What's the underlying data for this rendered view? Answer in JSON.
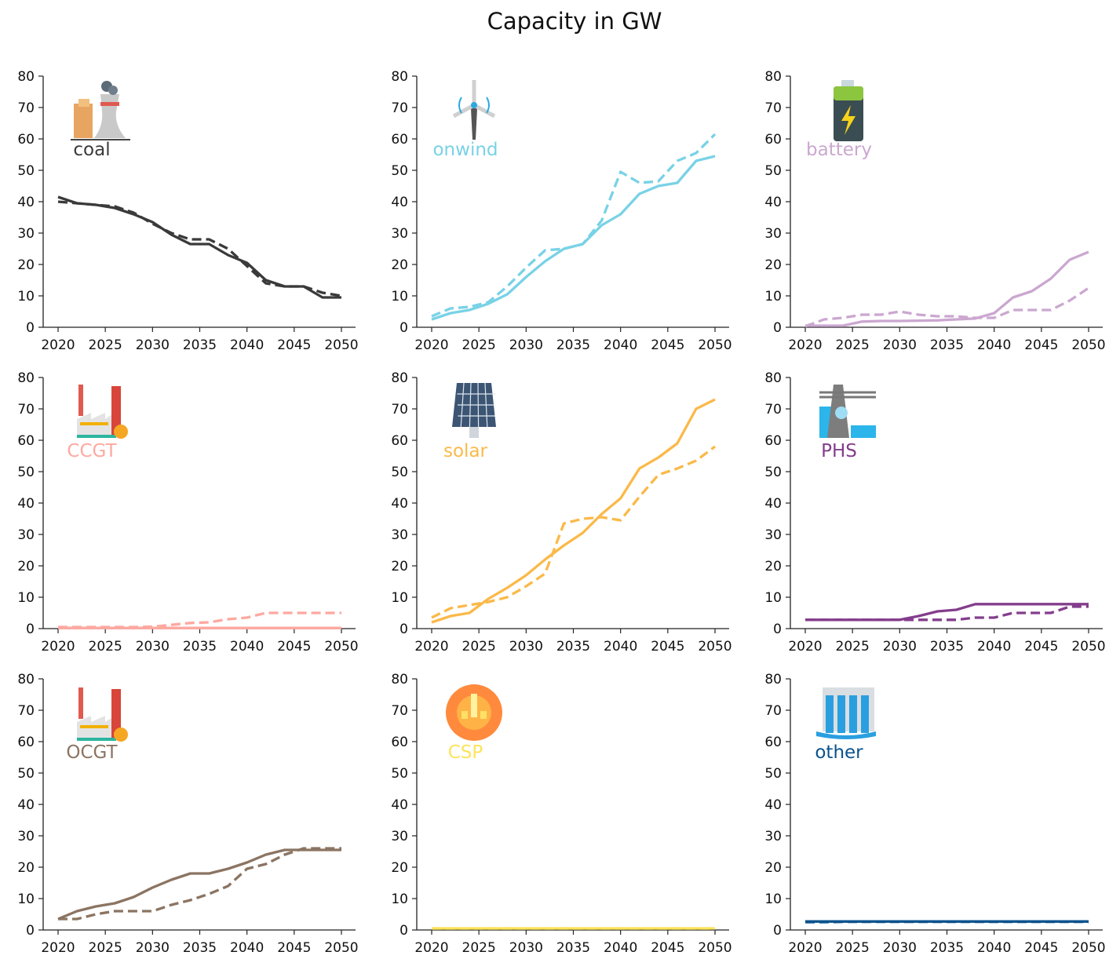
{
  "title": "Capacity in GW",
  "chart_data": [
    {
      "type": "line",
      "label": "coal",
      "color": "#3a3a3a",
      "icon": "power-plant-icon",
      "x": [
        2020,
        2022,
        2024,
        2026,
        2028,
        2030,
        2032,
        2034,
        2036,
        2038,
        2040,
        2042,
        2044,
        2046,
        2048,
        2050
      ],
      "series": [
        {
          "style": "solid",
          "values": [
            41.5,
            39.5,
            39,
            38,
            36,
            33.5,
            29.5,
            26.5,
            26.5,
            23,
            20.5,
            15,
            13,
            13,
            9.5,
            9.5
          ]
        },
        {
          "style": "dashed",
          "values": [
            40,
            39.5,
            39,
            38.5,
            36.5,
            33,
            30,
            28,
            28,
            25,
            19.5,
            14,
            13,
            13,
            11,
            10
          ]
        }
      ],
      "ylim": [
        0,
        80
      ],
      "xlim": [
        2020,
        2050
      ]
    },
    {
      "type": "line",
      "label": "onwind",
      "color": "#79d2e6",
      "icon": "wind-turbine-icon",
      "x": [
        2020,
        2022,
        2024,
        2026,
        2028,
        2030,
        2032,
        2034,
        2036,
        2038,
        2040,
        2042,
        2044,
        2046,
        2048,
        2050
      ],
      "series": [
        {
          "style": "solid",
          "values": [
            2.5,
            4.5,
            5.5,
            7.5,
            10.5,
            16,
            21,
            25,
            26.5,
            32.5,
            36,
            42.5,
            45,
            46,
            53,
            54.5
          ]
        },
        {
          "style": "dashed",
          "values": [
            3.5,
            6,
            6.5,
            8,
            13,
            19,
            24.5,
            25,
            26.5,
            34,
            49.5,
            46,
            46.5,
            53,
            55.5,
            61.5
          ]
        }
      ],
      "ylim": [
        0,
        80
      ],
      "xlim": [
        2020,
        2050
      ]
    },
    {
      "type": "line",
      "label": "battery",
      "color": "#cba7d0",
      "icon": "battery-icon",
      "x": [
        2020,
        2022,
        2024,
        2026,
        2028,
        2030,
        2032,
        2034,
        2036,
        2038,
        2040,
        2042,
        2044,
        2046,
        2048,
        2050
      ],
      "series": [
        {
          "style": "solid",
          "values": [
            0.5,
            0.5,
            0.5,
            1.8,
            2,
            2,
            2.1,
            2.2,
            2.5,
            2.8,
            4.5,
            9.5,
            11.5,
            15.5,
            21.5,
            24
          ]
        },
        {
          "style": "dashed",
          "values": [
            0.3,
            2.5,
            3,
            4,
            4,
            5,
            4,
            3.5,
            3.5,
            3,
            3,
            5.5,
            5.5,
            5.5,
            8.5,
            12.5
          ]
        }
      ],
      "ylim": [
        0,
        80
      ],
      "xlim": [
        2020,
        2050
      ]
    },
    {
      "type": "line",
      "label": "CCGT",
      "color": "#fea8a0",
      "icon": "factory-icon",
      "x": [
        2020,
        2022,
        2024,
        2026,
        2028,
        2030,
        2032,
        2034,
        2036,
        2038,
        2040,
        2042,
        2044,
        2046,
        2048,
        2050
      ],
      "series": [
        {
          "style": "solid",
          "values": [
            0.2,
            0.2,
            0.2,
            0.2,
            0.2,
            0.2,
            0.2,
            0.2,
            0.2,
            0.2,
            0.2,
            0.2,
            0.2,
            0.2,
            0.2,
            0.2
          ]
        },
        {
          "style": "dashed",
          "values": [
            0.5,
            0.5,
            0.5,
            0.5,
            0.5,
            0.6,
            1.2,
            1.8,
            2,
            3,
            3.5,
            5,
            5,
            5,
            5,
            5
          ]
        }
      ],
      "ylim": [
        0,
        80
      ],
      "xlim": [
        2020,
        2050
      ]
    },
    {
      "type": "line",
      "label": "solar",
      "color": "#fbb949",
      "icon": "solar-panel-icon",
      "x": [
        2020,
        2022,
        2024,
        2026,
        2028,
        2030,
        2032,
        2034,
        2036,
        2038,
        2040,
        2042,
        2044,
        2046,
        2048,
        2050
      ],
      "series": [
        {
          "style": "solid",
          "values": [
            2,
            4,
            5,
            9.5,
            13,
            17,
            22,
            26.5,
            30.5,
            36.5,
            41.5,
            51,
            54.5,
            59,
            70,
            73
          ]
        },
        {
          "style": "dashed",
          "values": [
            3.5,
            6.5,
            7.5,
            8.5,
            10,
            13.5,
            17.5,
            33.5,
            35,
            35.5,
            34.5,
            42,
            49,
            51,
            53.5,
            58
          ]
        }
      ],
      "ylim": [
        0,
        80
      ],
      "xlim": [
        2020,
        2050
      ]
    },
    {
      "type": "line",
      "label": "PHS",
      "color": "#843d8c",
      "icon": "hydro-storage-icon",
      "x": [
        2020,
        2022,
        2024,
        2026,
        2028,
        2030,
        2032,
        2034,
        2036,
        2038,
        2040,
        2042,
        2044,
        2046,
        2048,
        2050
      ],
      "series": [
        {
          "style": "solid",
          "values": [
            2.8,
            2.8,
            2.8,
            2.8,
            2.8,
            2.8,
            4,
            5.5,
            6,
            7.8,
            7.8,
            7.8,
            7.8,
            7.8,
            7.8,
            7.8
          ]
        },
        {
          "style": "dashed",
          "values": [
            2.8,
            2.8,
            2.8,
            2.8,
            2.8,
            2.8,
            2.8,
            2.8,
            2.8,
            3.5,
            3.5,
            5,
            5,
            5,
            7,
            7
          ]
        }
      ],
      "ylim": [
        0,
        80
      ],
      "xlim": [
        2020,
        2050
      ]
    },
    {
      "type": "line",
      "label": "OCGT",
      "color": "#8b7462",
      "icon": "factory-icon",
      "x": [
        2020,
        2022,
        2024,
        2026,
        2028,
        2030,
        2032,
        2034,
        2036,
        2038,
        2040,
        2042,
        2044,
        2046,
        2048,
        2050
      ],
      "series": [
        {
          "style": "solid",
          "values": [
            3.5,
            6,
            7.5,
            8.5,
            10.5,
            13.5,
            16,
            18,
            18,
            19.5,
            21.5,
            24,
            25.5,
            25.5,
            25.5,
            25.5
          ]
        },
        {
          "style": "dashed",
          "values": [
            3.5,
            3.5,
            5,
            6,
            6,
            6,
            8,
            9.5,
            11.5,
            14,
            19.5,
            21,
            24,
            26,
            26,
            26
          ]
        }
      ],
      "ylim": [
        0,
        80
      ],
      "xlim": [
        2020,
        2050
      ]
    },
    {
      "type": "line",
      "label": "CSP",
      "color": "#fce45b",
      "icon": "csp-icon",
      "x": [
        2020,
        2022,
        2024,
        2026,
        2028,
        2030,
        2032,
        2034,
        2036,
        2038,
        2040,
        2042,
        2044,
        2046,
        2048,
        2050
      ],
      "series": [
        {
          "style": "solid",
          "values": [
            0.5,
            0.5,
            0.5,
            0.5,
            0.5,
            0.5,
            0.5,
            0.5,
            0.5,
            0.5,
            0.5,
            0.5,
            0.5,
            0.5,
            0.5,
            0.5
          ]
        },
        {
          "style": "dashed",
          "values": [
            0.5,
            0.5,
            0.5,
            0.5,
            0.5,
            0.5,
            0.5,
            0.5,
            0.5,
            0.5,
            0.5,
            0.5,
            0.5,
            0.5,
            0.5,
            0.5
          ]
        }
      ],
      "ylim": [
        0,
        80
      ],
      "xlim": [
        2020,
        2050
      ]
    },
    {
      "type": "line",
      "label": "other",
      "color": "#0a528d",
      "icon": "dam-icon",
      "x": [
        2020,
        2022,
        2024,
        2026,
        2028,
        2030,
        2032,
        2034,
        2036,
        2038,
        2040,
        2042,
        2044,
        2046,
        2048,
        2050
      ],
      "series": [
        {
          "style": "solid",
          "values": [
            2.7,
            2.7,
            2.7,
            2.7,
            2.7,
            2.7,
            2.7,
            2.7,
            2.7,
            2.7,
            2.7,
            2.7,
            2.7,
            2.7,
            2.7,
            2.7
          ]
        },
        {
          "style": "dashed",
          "values": [
            2.5,
            2.5,
            2.6,
            2.6,
            2.6,
            2.6,
            2.6,
            2.6,
            2.6,
            2.6,
            2.6,
            2.6,
            2.6,
            2.6,
            2.6,
            2.6
          ]
        }
      ],
      "ylim": [
        0,
        80
      ],
      "xlim": [
        2020,
        2050
      ]
    }
  ],
  "axes": {
    "xticks": [
      2020,
      2025,
      2030,
      2035,
      2040,
      2045,
      2050
    ],
    "yticks": [
      0,
      10,
      20,
      30,
      40,
      50,
      60,
      70,
      80
    ]
  }
}
